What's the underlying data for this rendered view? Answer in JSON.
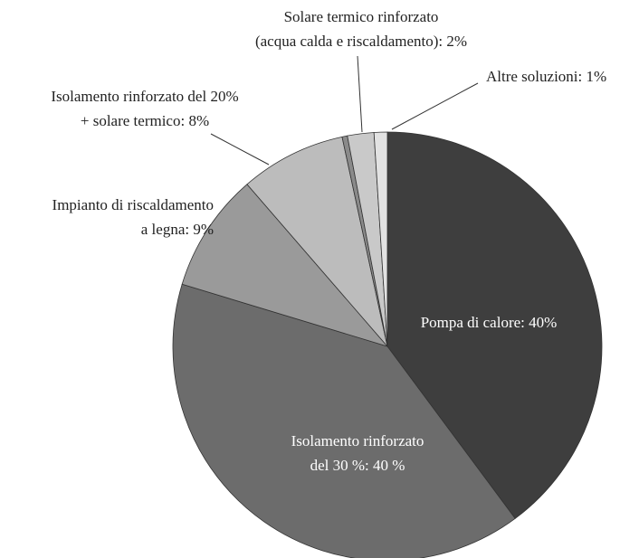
{
  "chart_data": {
    "type": "pie",
    "labels": [
      [
        "Pompa di calore: 40%"
      ],
      [
        "Isolamento rinforzato",
        "del 30 %: 40 %"
      ],
      [
        "Impianto di riscaldamento",
        "a legna: 9%"
      ],
      [
        "Isolamento rinforzato del 20%",
        "+ solare termico: 8%"
      ],
      null,
      [
        "Solare termico rinforzato",
        "(acqua calda e riscaldamento): 2%"
      ],
      [
        "Altre soluzioni: 1%"
      ]
    ],
    "values": [
      40,
      40,
      9,
      8,
      0.4,
      2,
      1
    ],
    "colors": [
      "#3e3e3e",
      "#6c6c6c",
      "#9a9a9a",
      "#bcbcbc",
      "#8a8a8a",
      "#c9c9c9",
      "#e2e2e2"
    ]
  }
}
